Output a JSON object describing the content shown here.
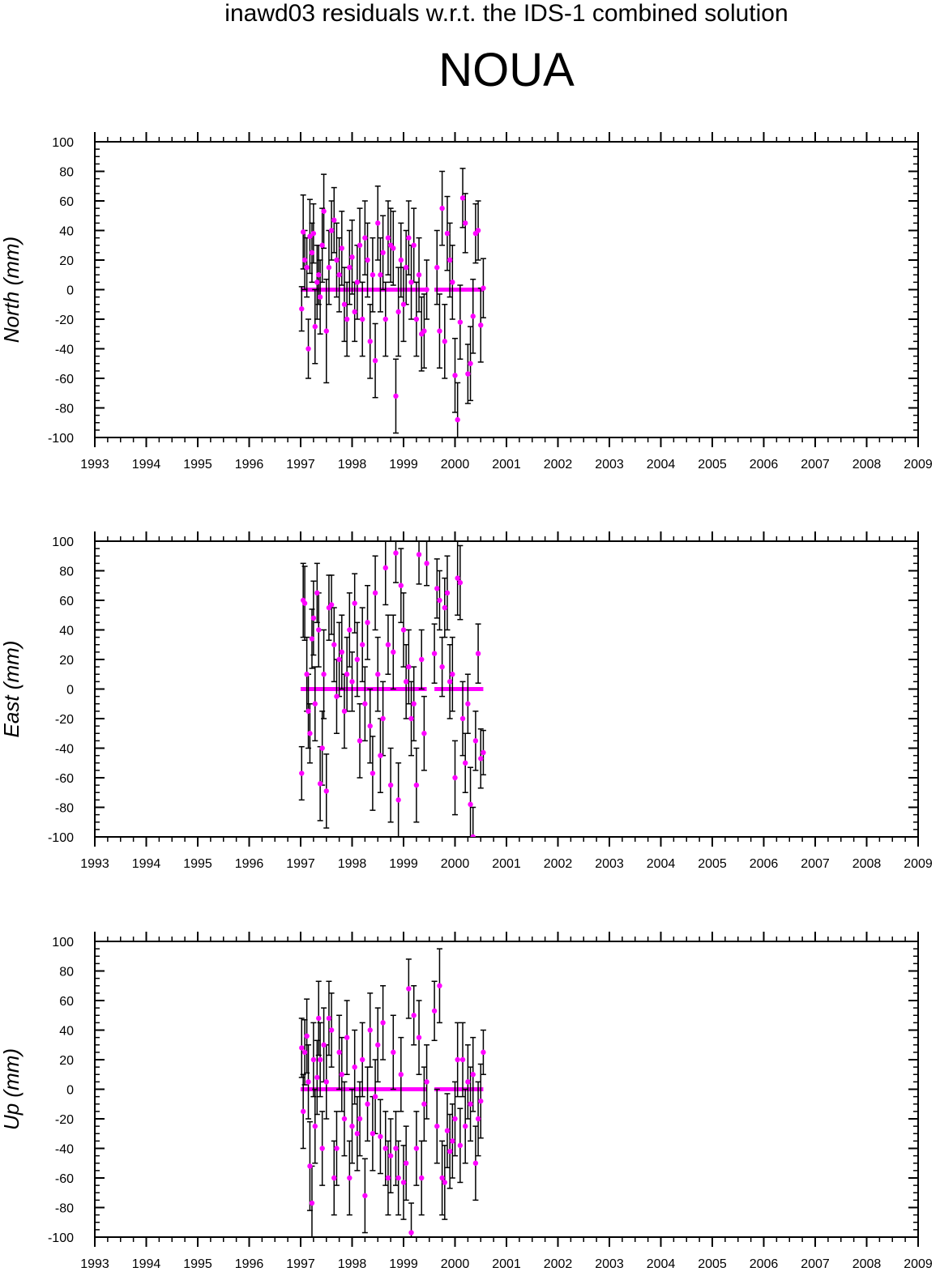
{
  "header": {
    "suptitle": "inawd03 residuals w.r.t. the IDS-1 combined solution",
    "station": "NOUA"
  },
  "style": {
    "marker_color": "#ff00ff",
    "errorbar_color": "#000000",
    "axis_color": "#000000"
  },
  "chart_data": [
    {
      "type": "scatter",
      "ylabel": "North (mm)",
      "xlim": [
        1993,
        2009
      ],
      "ylim": [
        -100,
        100
      ],
      "x_ticks": [
        "1993",
        "1994",
        "1995",
        "1996",
        "1997",
        "1998",
        "1999",
        "2000",
        "2001",
        "2002",
        "2003",
        "2004",
        "2005",
        "2006",
        "2007",
        "2008",
        "2009"
      ],
      "y_ticks": [
        "100",
        "80",
        "60",
        "40",
        "20",
        "0",
        "-20",
        "-40",
        "-60",
        "-80",
        "-100"
      ],
      "baseline_segments": [
        [
          1997.0,
          1999.45
        ],
        [
          1999.6,
          2000.55
        ]
      ],
      "series": [
        {
          "x": [
            1997.02,
            1997.05,
            1997.08,
            1997.12,
            1997.15,
            1997.18,
            1997.22,
            1997.25,
            1997.28,
            1997.32,
            1997.35,
            1997.38,
            1997.42,
            1997.45,
            1997.5,
            1997.55,
            1997.6,
            1997.65,
            1997.7,
            1997.75,
            1997.8,
            1997.85,
            1997.9,
            1997.95,
            1998.0,
            1998.05,
            1998.1,
            1998.15,
            1998.2,
            1998.25,
            1998.3,
            1998.35,
            1998.4,
            1998.45,
            1998.5,
            1998.55,
            1998.6,
            1998.65,
            1998.7,
            1998.75,
            1998.8,
            1998.85,
            1998.9,
            1998.95,
            1999.0,
            1999.05,
            1999.1,
            1999.15,
            1999.2,
            1999.25,
            1999.3,
            1999.35,
            1999.4,
            1999.45,
            1999.65,
            1999.7,
            1999.75,
            1999.8,
            1999.85,
            1999.9,
            1999.95,
            2000.0,
            2000.05,
            2000.1,
            2000.15,
            2000.2,
            2000.25,
            2000.3,
            2000.35,
            2000.4,
            2000.45,
            2000.5,
            2000.55
          ],
          "y": [
            -13,
            39,
            20,
            15,
            -40,
            36,
            25,
            38,
            -25,
            5,
            10,
            -5,
            30,
            53,
            -28,
            15,
            40,
            47,
            20,
            10,
            28,
            -10,
            -20,
            15,
            22,
            -15,
            5,
            30,
            -20,
            35,
            20,
            -35,
            10,
            -48,
            45,
            10,
            25,
            -20,
            35,
            30,
            28,
            -72,
            -15,
            20,
            -10,
            15,
            35,
            5,
            30,
            -20,
            10,
            -30,
            -28,
            0,
            15,
            -28,
            55,
            -35,
            38,
            20,
            5,
            -58,
            -88,
            -22,
            62,
            45,
            -57,
            -50,
            -18,
            38,
            40,
            -24,
            1
          ],
          "err": [
            15,
            25,
            20,
            20,
            20,
            25,
            20,
            20,
            25,
            25,
            20,
            25,
            25,
            25,
            35,
            25,
            20,
            22,
            25,
            25,
            25,
            25,
            25,
            25,
            25,
            20,
            25,
            25,
            25,
            25,
            25,
            25,
            25,
            25,
            25,
            25,
            25,
            25,
            25,
            25,
            25,
            25,
            30,
            25,
            25,
            25,
            25,
            25,
            25,
            25,
            25,
            25,
            25,
            20,
            25,
            25,
            25,
            25,
            25,
            25,
            25,
            25,
            25,
            25,
            20,
            20,
            20,
            25,
            25,
            20,
            20,
            25,
            20
          ]
        }
      ]
    },
    {
      "type": "scatter",
      "ylabel": "East (mm)",
      "xlim": [
        1993,
        2009
      ],
      "ylim": [
        -100,
        100
      ],
      "x_ticks": [
        "1993",
        "1994",
        "1995",
        "1996",
        "1997",
        "1998",
        "1999",
        "2000",
        "2001",
        "2002",
        "2003",
        "2004",
        "2005",
        "2006",
        "2007",
        "2008",
        "2009"
      ],
      "y_ticks": [
        "100",
        "80",
        "60",
        "40",
        "20",
        "0",
        "-20",
        "-40",
        "-60",
        "-80",
        "-100"
      ],
      "baseline_segments": [
        [
          1997.0,
          1999.45
        ],
        [
          1999.6,
          2000.55
        ]
      ],
      "series": [
        {
          "x": [
            1997.02,
            1997.05,
            1997.08,
            1997.12,
            1997.15,
            1997.18,
            1997.22,
            1997.25,
            1997.28,
            1997.32,
            1997.35,
            1997.38,
            1997.42,
            1997.45,
            1997.5,
            1997.55,
            1997.6,
            1997.65,
            1997.7,
            1997.75,
            1997.8,
            1997.85,
            1997.9,
            1997.95,
            1998.0,
            1998.05,
            1998.1,
            1998.15,
            1998.2,
            1998.25,
            1998.3,
            1998.35,
            1998.4,
            1998.45,
            1998.5,
            1998.55,
            1998.6,
            1998.65,
            1998.7,
            1998.75,
            1998.8,
            1998.85,
            1998.9,
            1998.95,
            1999.0,
            1999.05,
            1999.1,
            1999.15,
            1999.2,
            1999.25,
            1999.3,
            1999.35,
            1999.4,
            1999.45,
            1999.6,
            1999.65,
            1999.7,
            1999.75,
            1999.8,
            1999.85,
            1999.9,
            1999.95,
            2000.0,
            2000.05,
            2000.1,
            2000.15,
            2000.2,
            2000.25,
            2000.3,
            2000.35,
            2000.4,
            2000.45,
            2000.5,
            2000.55
          ],
          "y": [
            -57,
            60,
            58,
            10,
            -15,
            -30,
            34,
            48,
            -10,
            65,
            40,
            -64,
            -40,
            10,
            -69,
            55,
            57,
            30,
            -5,
            20,
            25,
            -15,
            10,
            40,
            5,
            58,
            20,
            -35,
            30,
            -10,
            45,
            -25,
            -57,
            65,
            10,
            -45,
            -20,
            82,
            30,
            -65,
            25,
            92,
            -75,
            70,
            40,
            5,
            15,
            -20,
            -10,
            -65,
            91,
            20,
            -30,
            85,
            24,
            68,
            60,
            15,
            55,
            65,
            5,
            10,
            -60,
            75,
            72,
            -20,
            -50,
            -10,
            -78,
            -100,
            -35,
            24,
            -47,
            -43
          ],
          "err": [
            18,
            25,
            25,
            25,
            25,
            20,
            20,
            25,
            25,
            20,
            25,
            25,
            25,
            30,
            25,
            22,
            20,
            25,
            25,
            25,
            25,
            25,
            25,
            25,
            20,
            20,
            25,
            25,
            25,
            25,
            25,
            25,
            25,
            25,
            25,
            25,
            25,
            25,
            20,
            25,
            25,
            20,
            25,
            25,
            25,
            25,
            25,
            25,
            25,
            25,
            20,
            20,
            25,
            15,
            20,
            20,
            20,
            20,
            20,
            25,
            25,
            25,
            25,
            25,
            25,
            25,
            20,
            20,
            25,
            20,
            20,
            20,
            20,
            15
          ]
        }
      ]
    },
    {
      "type": "scatter",
      "ylabel": "Up (mm)",
      "xlim": [
        1993,
        2009
      ],
      "ylim": [
        -100,
        100
      ],
      "x_ticks": [
        "1993",
        "1994",
        "1995",
        "1996",
        "1997",
        "1998",
        "1999",
        "2000",
        "2001",
        "2002",
        "2003",
        "2004",
        "2005",
        "2006",
        "2007",
        "2008",
        "2009"
      ],
      "y_ticks": [
        "100",
        "80",
        "60",
        "40",
        "20",
        "0",
        "-20",
        "-40",
        "-60",
        "-80",
        "-100"
      ],
      "baseline_segments": [
        [
          1997.0,
          1999.45
        ],
        [
          1999.6,
          2000.55
        ]
      ],
      "series": [
        {
          "x": [
            1997.02,
            1997.05,
            1997.08,
            1997.12,
            1997.15,
            1997.18,
            1997.22,
            1997.25,
            1997.28,
            1997.32,
            1997.35,
            1997.38,
            1997.42,
            1997.45,
            1997.5,
            1997.55,
            1997.6,
            1997.65,
            1997.7,
            1997.75,
            1997.8,
            1997.85,
            1997.9,
            1997.95,
            1998.0,
            1998.05,
            1998.1,
            1998.15,
            1998.2,
            1998.25,
            1998.3,
            1998.35,
            1998.4,
            1998.45,
            1998.5,
            1998.55,
            1998.6,
            1998.65,
            1998.7,
            1998.75,
            1998.8,
            1998.85,
            1998.9,
            1998.95,
            1999.0,
            1999.05,
            1999.1,
            1999.15,
            1999.2,
            1999.25,
            1999.3,
            1999.35,
            1999.4,
            1999.45,
            1999.6,
            1999.65,
            1999.7,
            1999.75,
            1999.8,
            1999.85,
            1999.9,
            1999.95,
            2000.0,
            2000.05,
            2000.1,
            2000.15,
            2000.2,
            2000.25,
            2000.3,
            2000.35,
            2000.4,
            2000.45,
            2000.5,
            2000.55
          ],
          "y": [
            28,
            -15,
            25,
            36,
            5,
            -52,
            -77,
            20,
            -25,
            8,
            48,
            20,
            -40,
            30,
            5,
            48,
            40,
            -60,
            -40,
            25,
            10,
            -20,
            35,
            -60,
            -25,
            15,
            -30,
            -20,
            20,
            -72,
            -10,
            40,
            -30,
            -5,
            30,
            -32,
            45,
            -40,
            -60,
            -45,
            25,
            -40,
            -60,
            10,
            -63,
            -50,
            68,
            -97,
            50,
            -40,
            35,
            -60,
            -10,
            5,
            53,
            -25,
            70,
            -60,
            -63,
            -28,
            -42,
            -35,
            -20,
            20,
            -38,
            20,
            -25,
            5,
            -10,
            10,
            -50,
            -20,
            -8,
            25
          ],
          "err": [
            20,
            25,
            22,
            25,
            25,
            30,
            25,
            25,
            25,
            25,
            25,
            25,
            25,
            25,
            25,
            25,
            25,
            25,
            25,
            25,
            25,
            25,
            25,
            25,
            25,
            25,
            25,
            25,
            25,
            25,
            25,
            25,
            25,
            25,
            25,
            25,
            25,
            25,
            25,
            25,
            25,
            25,
            25,
            25,
            25,
            25,
            20,
            20,
            20,
            25,
            25,
            25,
            25,
            25,
            20,
            25,
            25,
            25,
            25,
            25,
            25,
            25,
            25,
            25,
            25,
            25,
            25,
            25,
            25,
            25,
            25,
            25,
            25,
            15
          ]
        }
      ]
    }
  ]
}
